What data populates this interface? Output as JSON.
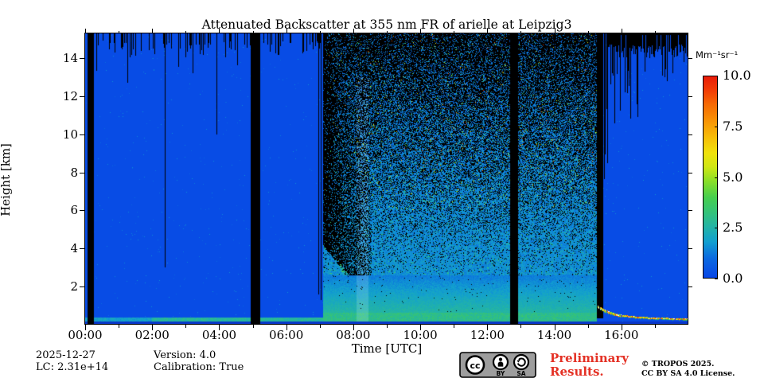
{
  "title": "Attenuated Backscatter at 355 nm FR of arielle at Leipzig3",
  "axes": {
    "x_label": "Time [UTC]",
    "y_label": "Height [km]",
    "x_tick_hours": [
      0,
      2,
      4,
      6,
      8,
      10,
      12,
      14,
      16
    ],
    "x_tick_labels": [
      "00:00",
      "02:00",
      "04:00",
      "06:00",
      "08:00",
      "10:00",
      "12:00",
      "14:00",
      "16:00"
    ],
    "x_minor_tick_hours": [
      1,
      3,
      5,
      7,
      9,
      11,
      13,
      15,
      17
    ],
    "y_tick_km": [
      2,
      4,
      6,
      8,
      10,
      12,
      14
    ],
    "y_tick_labels": [
      "2",
      "4",
      "6",
      "8",
      "10",
      "12",
      "14"
    ],
    "x_range_hours": [
      0,
      18
    ],
    "y_range_km": [
      0,
      15.3
    ]
  },
  "colorbar": {
    "unit": "Mm⁻¹sr⁻¹",
    "tick_values": [
      0,
      2.5,
      5,
      7.5,
      10
    ],
    "tick_labels": [
      "0.0",
      "2.5",
      "5.0",
      "7.5",
      "10.0"
    ],
    "min": 0,
    "max": 10
  },
  "footer": {
    "date": "2025-12-27",
    "lc": "LC: 2.31e+14",
    "version": "Version: 4.0",
    "calibration": "Calibration: True",
    "preliminary": "Preliminary Results.",
    "copyright_line1": "© TROPOS 2025.",
    "copyright_line2": "CC BY SA 4.0 License.",
    "badge_cc": "cc",
    "badge_by": "BY",
    "badge_sa": "SA"
  },
  "chart_data": {
    "type": "heatmap",
    "title": "Attenuated Backscatter at 355 nm FR of arielle at Leipzig3",
    "xlabel": "Time [UTC]",
    "ylabel": "Height [km]",
    "x_range_hours": [
      0,
      18
    ],
    "y_range_km": [
      0,
      15.3
    ],
    "value_units": "Mm⁻¹sr⁻¹",
    "value_range": [
      0,
      10
    ],
    "background_value": 0.15,
    "colormap_stops": [
      [
        0.0,
        "#0846e6"
      ],
      [
        0.1,
        "#0b6be0"
      ],
      [
        0.18,
        "#12a0cf"
      ],
      [
        0.25,
        "#22b3a8"
      ],
      [
        0.32,
        "#33c27c"
      ],
      [
        0.4,
        "#47cf4e"
      ],
      [
        0.48,
        "#8adf28"
      ],
      [
        0.55,
        "#cfe714"
      ],
      [
        0.62,
        "#f0e20c"
      ],
      [
        0.7,
        "#f7bc08"
      ],
      [
        0.78,
        "#f89305"
      ],
      [
        0.86,
        "#f66a04"
      ],
      [
        0.93,
        "#f23d06"
      ],
      [
        1.0,
        "#e91c08"
      ]
    ],
    "data_gaps_hours": [
      [
        0.07,
        0.25
      ],
      [
        4.95,
        5.22
      ],
      [
        12.67,
        12.93
      ]
    ],
    "clean_ranges_hours": [
      [
        0.0,
        0.07
      ],
      [
        0.25,
        4.95
      ],
      [
        5.22,
        7.1
      ],
      [
        15.6,
        18.0
      ]
    ],
    "daytime_noise_hours": [
      7.1,
      15.28
    ],
    "transition_band_hours": [
      15.28,
      15.6
    ],
    "noise_wedge": {
      "start_h": 7.1,
      "end_h": 8.55,
      "bottom_km_start": 4.2,
      "bottom_km_end": 0.85
    },
    "overlap_region_km": 0.3,
    "surface_layer_km": [
      0.17,
      0.36
    ],
    "daytime_green_band_km": [
      0.3,
      0.62
    ],
    "light_columns_hours": [
      8.1,
      8.45
    ],
    "top_needle_ranges_hours": [
      [
        0.33,
        4.95
      ],
      [
        5.25,
        7.02
      ]
    ],
    "long_dropouts": [
      {
        "hour": 2.37,
        "down_to_km": 3.0
      },
      {
        "hour": 3.92,
        "down_to_km": 10.0
      },
      {
        "hour": 6.96,
        "down_to_km": 1.6
      },
      {
        "hour": 7.04,
        "down_to_km": 1.3
      }
    ],
    "right_top_black_band_km": [
      14.1,
      15.3
    ],
    "right_needle_cluster_hours": [
      15.6,
      16.5
    ],
    "descending_layer_points": [
      [
        15.3,
        1.0
      ],
      [
        15.5,
        0.8
      ],
      [
        15.75,
        0.62
      ],
      [
        16.0,
        0.52
      ],
      [
        16.5,
        0.42
      ],
      [
        17.0,
        0.38
      ],
      [
        17.97,
        0.32
      ]
    ],
    "descending_layer_colors": [
      "#ffffff",
      "#ff3300",
      "#ff9900",
      "#ffdd00",
      "#99ee22",
      "#44cc44"
    ],
    "descending_layer_weights": [
      0.12,
      0.18,
      0.22,
      0.25,
      0.13,
      0.1
    ]
  }
}
